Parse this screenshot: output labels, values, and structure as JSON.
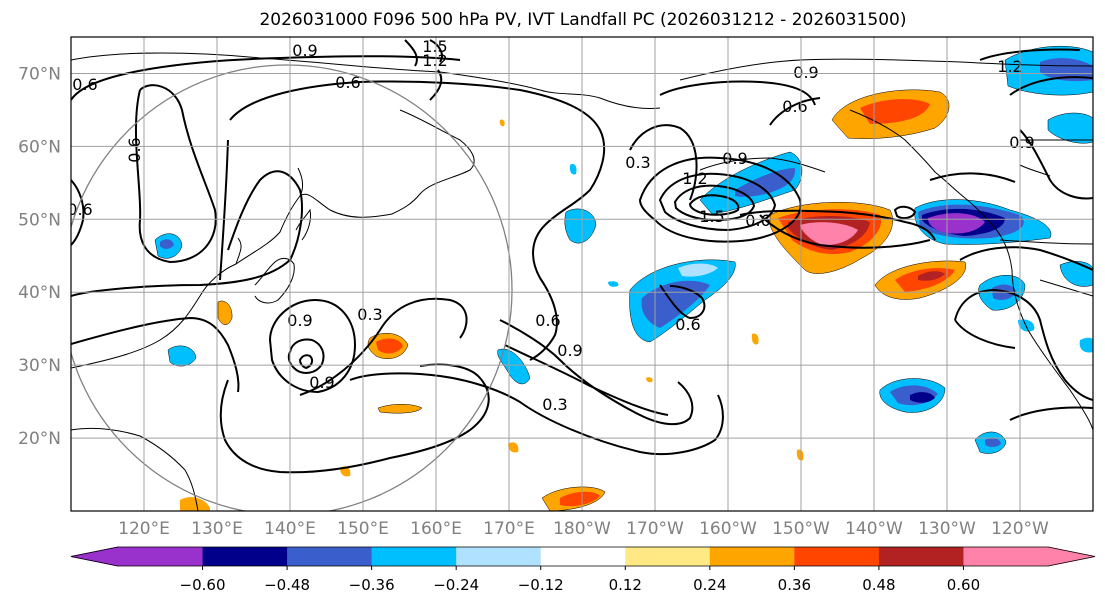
{
  "title": "2026031000 F096 500 hPa PV, IVT Landfall PC (2026031212 - 2026031500)",
  "lat_labels": [
    "70°N",
    "60°N",
    "50°N",
    "40°N",
    "30°N",
    "20°N"
  ],
  "lon_labels": [
    "120°E",
    "130°E",
    "140°E",
    "150°E",
    "160°E",
    "170°E",
    "180°W",
    "170°W",
    "160°W",
    "150°W",
    "140°W",
    "130°W",
    "120°W"
  ],
  "colorbar": {
    "ticks": [
      "−0.60",
      "−0.48",
      "−0.36",
      "−0.24",
      "−0.12",
      "0.12",
      "0.24",
      "0.36",
      "0.48",
      "0.60"
    ],
    "colors": [
      "#9932cc",
      "#00008b",
      "#3a5fcd",
      "#00bfff",
      "#b0e2ff",
      "#ffffff",
      "#ffe985",
      "#ffa500",
      "#ff4500",
      "#b22222",
      "#ff82ab"
    ],
    "extend": "both"
  },
  "contour_labels": [
    "0.9",
    "1.5",
    "1.2",
    "0.6",
    "0.6",
    "0.6",
    "0.9",
    "0.6",
    "0.3",
    "0.9",
    "0.6",
    "1.2",
    "1.5",
    "0.6",
    "0.9",
    "0.3",
    "0.6",
    "0.9",
    "0.6",
    "0.3",
    "0.9",
    "1.2",
    "0.9"
  ],
  "lat_range": [
    10,
    75
  ],
  "lon_range": [
    110,
    250
  ],
  "projection": "cylindrical",
  "grid": true
}
